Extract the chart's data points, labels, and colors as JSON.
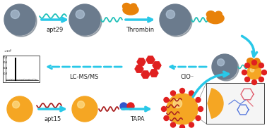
{
  "bg_color": "#ffffff",
  "gray_sphere_color": "#6b7b8d",
  "gold_sphere_color": "#f5a623",
  "arrow_color": "#29c8e8",
  "wavy_teal_color": "#20c0b8",
  "wavy_dark_red_color": "#aa2020",
  "thrombin_color": "#e8820a",
  "red_dot_color": "#e02020",
  "blue_dot_color": "#3355cc",
  "labels": {
    "apt29": "apt29",
    "thrombin": "Thrombin",
    "lc_ms": "LC-MS/MS",
    "clo": "ClO⁻",
    "apt15": "apt15",
    "tapa": "TAPA"
  }
}
